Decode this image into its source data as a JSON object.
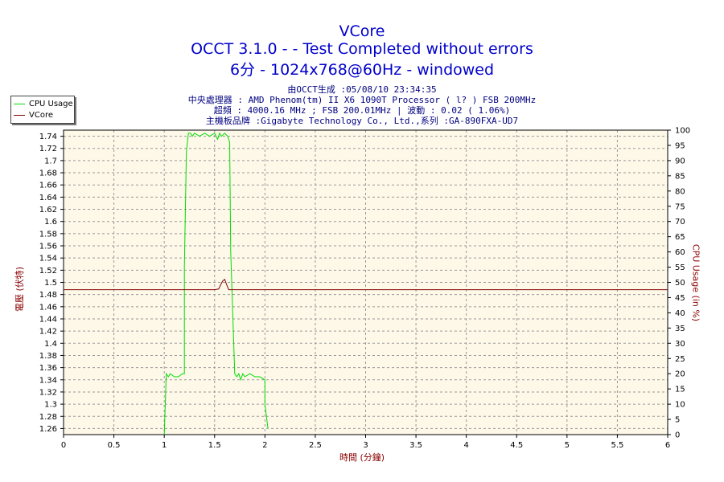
{
  "header": {
    "title": "VCore",
    "line2": "OCCT 3.1.0 -  - Test Completed without errors",
    "line3": "6分 - 1024x768@60Hz - windowed",
    "info": [
      "由OCCT生成 :05/08/10 23:34:35",
      "中央處理器 : AMD Phenom(tm) II X6 1090T Processor (  l? ) FSB 200MHz",
      "超頻 : 4000.16 MHz ; FSB 200.01MHz | 波動 : 0.02 ( 1.06%)",
      "主機板品牌 :Gigabyte Technology Co., Ltd.,系列 :GA-890FXA-UD7"
    ]
  },
  "colors": {
    "plot_background": "#fdf8e8",
    "cpu_usage": "#00dd00",
    "vcore": "#800000",
    "title": "#0000cc",
    "axis_label": "#8b0000"
  },
  "chart_data": {
    "type": "line",
    "xlabel": "時間 (分鐘)",
    "ylabel_left": "電壓 (伏特)",
    "ylabel_right": "CPU Usage (in %)",
    "xlim": [
      0,
      6
    ],
    "ylim_left": [
      1.25,
      1.75
    ],
    "ylim_right": [
      0,
      100
    ],
    "x_ticks": [
      "0",
      "0.5",
      "1",
      "1.5",
      "2",
      "2.5",
      "3",
      "3.5",
      "4",
      "4.5",
      "5",
      "5.5",
      "6"
    ],
    "y_left_ticks": [
      "1.26",
      "1.28",
      "1.3",
      "1.32",
      "1.34",
      "1.36",
      "1.38",
      "1.4",
      "1.42",
      "1.44",
      "1.46",
      "1.48",
      "1.5",
      "1.52",
      "1.54",
      "1.56",
      "1.58",
      "1.6",
      "1.62",
      "1.64",
      "1.66",
      "1.68",
      "1.7",
      "1.72",
      "1.74"
    ],
    "y_right_ticks": [
      "0",
      "5",
      "10",
      "15",
      "20",
      "25",
      "30",
      "35",
      "40",
      "45",
      "50",
      "55",
      "60",
      "65",
      "70",
      "75",
      "80",
      "85",
      "90",
      "95",
      "100"
    ],
    "grid": true,
    "legend_position": "top-left",
    "series": [
      {
        "name": "CPU Usage",
        "axis": "right",
        "x": [
          1.0,
          1.02,
          1.04,
          1.06,
          1.1,
          1.14,
          1.18,
          1.2,
          1.2,
          1.22,
          1.24,
          1.26,
          1.28,
          1.3,
          1.35,
          1.4,
          1.45,
          1.5,
          1.53,
          1.55,
          1.57,
          1.6,
          1.63,
          1.65,
          1.66,
          1.68,
          1.7,
          1.72,
          1.74,
          1.76,
          1.78,
          1.8,
          1.85,
          1.9,
          1.95,
          2.0,
          2.0,
          2.03
        ],
        "values": [
          0,
          20,
          19,
          20,
          19,
          19,
          20,
          20,
          55,
          93,
          99,
          99,
          98,
          99,
          98,
          99,
          98,
          99,
          97,
          99,
          98,
          99,
          98,
          96,
          60,
          40,
          20,
          19,
          20,
          18,
          20,
          19,
          20,
          19,
          19,
          18,
          10,
          2
        ]
      },
      {
        "name": "VCore",
        "axis": "left",
        "x": [
          0,
          1.5,
          1.54,
          1.56,
          1.58,
          1.6,
          1.62,
          1.64,
          1.7,
          6
        ],
        "values": [
          1.488,
          1.488,
          1.489,
          1.496,
          1.502,
          1.505,
          1.496,
          1.488,
          1.488,
          1.488
        ]
      }
    ]
  }
}
